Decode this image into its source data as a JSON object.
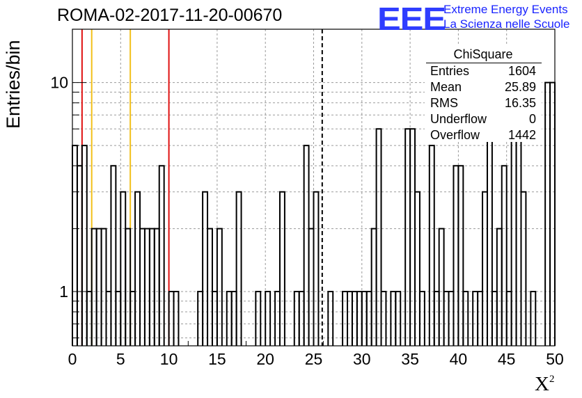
{
  "title": "ROMA-02-2017-11-20-00670",
  "logo": {
    "mark": "EEE",
    "line1": "Extreme Energy Events",
    "line2": "La Scienza nelle Scuole",
    "color": "#2f3dff"
  },
  "stats_box": {
    "title": "ChiSquare",
    "rows": [
      {
        "key": "Entries",
        "value": "1604"
      },
      {
        "key": "Mean",
        "value": "25.89"
      },
      {
        "key": "RMS",
        "value": "16.35"
      },
      {
        "key": "Underflow",
        "value": "0"
      },
      {
        "key": "Overflow",
        "value": "1442"
      }
    ]
  },
  "chart_data": {
    "type": "histogram",
    "xlabel_base": "X",
    "xlabel_sup": "2",
    "ylabel": "Entries/bin",
    "xlim": [
      0,
      50
    ],
    "ylim": [
      0.55,
      18
    ],
    "yscale": "log",
    "bin_width": 0.5,
    "x_ticks": [
      "0",
      "5",
      "10",
      "15",
      "20",
      "25",
      "30",
      "35",
      "40",
      "45",
      "50"
    ],
    "y_ticks": [
      "1",
      "10"
    ],
    "grid": true,
    "bins": [
      {
        "x0": 0.0,
        "y": 5
      },
      {
        "x0": 0.5,
        "y": 4
      },
      {
        "x0": 1.0,
        "y": 5
      },
      {
        "x0": 1.5,
        "y": 1
      },
      {
        "x0": 2.0,
        "y": 2
      },
      {
        "x0": 2.5,
        "y": 2
      },
      {
        "x0": 3.0,
        "y": 2
      },
      {
        "x0": 3.5,
        "y": 1
      },
      {
        "x0": 4.0,
        "y": 4
      },
      {
        "x0": 4.5,
        "y": 1
      },
      {
        "x0": 5.0,
        "y": 3
      },
      {
        "x0": 5.5,
        "y": 2
      },
      {
        "x0": 6.0,
        "y": 1
      },
      {
        "x0": 6.5,
        "y": 3
      },
      {
        "x0": 7.0,
        "y": 2
      },
      {
        "x0": 7.5,
        "y": 2
      },
      {
        "x0": 8.0,
        "y": 2
      },
      {
        "x0": 8.5,
        "y": 2
      },
      {
        "x0": 9.0,
        "y": 4
      },
      {
        "x0": 9.5,
        "y": 0
      },
      {
        "x0": 10.0,
        "y": 1
      },
      {
        "x0": 10.5,
        "y": 1
      },
      {
        "x0": 11.0,
        "y": 0
      },
      {
        "x0": 13.0,
        "y": 1
      },
      {
        "x0": 13.5,
        "y": 3
      },
      {
        "x0": 14.0,
        "y": 2
      },
      {
        "x0": 14.5,
        "y": 1
      },
      {
        "x0": 15.0,
        "y": 2
      },
      {
        "x0": 15.5,
        "y": 0
      },
      {
        "x0": 16.0,
        "y": 1
      },
      {
        "x0": 16.5,
        "y": 1
      },
      {
        "x0": 17.0,
        "y": 3
      },
      {
        "x0": 17.5,
        "y": 0
      },
      {
        "x0": 19.0,
        "y": 1
      },
      {
        "x0": 19.5,
        "y": 0
      },
      {
        "x0": 20.0,
        "y": 1
      },
      {
        "x0": 20.5,
        "y": 0
      },
      {
        "x0": 21.0,
        "y": 1
      },
      {
        "x0": 21.5,
        "y": 3
      },
      {
        "x0": 22.0,
        "y": 0
      },
      {
        "x0": 23.0,
        "y": 1
      },
      {
        "x0": 23.5,
        "y": 1
      },
      {
        "x0": 24.0,
        "y": 5
      },
      {
        "x0": 24.5,
        "y": 2
      },
      {
        "x0": 25.0,
        "y": 3
      },
      {
        "x0": 25.5,
        "y": 0
      },
      {
        "x0": 26.5,
        "y": 1
      },
      {
        "x0": 27.0,
        "y": 0
      },
      {
        "x0": 28.0,
        "y": 1
      },
      {
        "x0": 28.5,
        "y": 1
      },
      {
        "x0": 29.0,
        "y": 1
      },
      {
        "x0": 29.5,
        "y": 1
      },
      {
        "x0": 30.0,
        "y": 1
      },
      {
        "x0": 30.5,
        "y": 1
      },
      {
        "x0": 31.0,
        "y": 2
      },
      {
        "x0": 31.5,
        "y": 6
      },
      {
        "x0": 32.0,
        "y": 1
      },
      {
        "x0": 32.5,
        "y": 0
      },
      {
        "x0": 33.0,
        "y": 1
      },
      {
        "x0": 33.5,
        "y": 1
      },
      {
        "x0": 34.0,
        "y": 0
      },
      {
        "x0": 34.5,
        "y": 6
      },
      {
        "x0": 35.0,
        "y": 6
      },
      {
        "x0": 35.5,
        "y": 3
      },
      {
        "x0": 36.0,
        "y": 1
      },
      {
        "x0": 36.5,
        "y": 0
      },
      {
        "x0": 37.0,
        "y": 5
      },
      {
        "x0": 37.5,
        "y": 1
      },
      {
        "x0": 38.0,
        "y": 2
      },
      {
        "x0": 38.5,
        "y": 1
      },
      {
        "x0": 39.0,
        "y": 1
      },
      {
        "x0": 39.5,
        "y": 4
      },
      {
        "x0": 40.0,
        "y": 4
      },
      {
        "x0": 40.5,
        "y": 1
      },
      {
        "x0": 41.0,
        "y": 0
      },
      {
        "x0": 41.5,
        "y": 1
      },
      {
        "x0": 42.0,
        "y": 1
      },
      {
        "x0": 42.5,
        "y": 3
      },
      {
        "x0": 43.0,
        "y": 6
      },
      {
        "x0": 43.5,
        "y": 1
      },
      {
        "x0": 44.0,
        "y": 2
      },
      {
        "x0": 44.5,
        "y": 4
      },
      {
        "x0": 45.0,
        "y": 1
      },
      {
        "x0": 45.5,
        "y": 7
      },
      {
        "x0": 46.0,
        "y": 7
      },
      {
        "x0": 46.5,
        "y": 3
      },
      {
        "x0": 47.0,
        "y": 0
      },
      {
        "x0": 47.5,
        "y": 1
      },
      {
        "x0": 48.0,
        "y": 0
      },
      {
        "x0": 49.0,
        "y": 10
      },
      {
        "x0": 49.5,
        "y": 10
      }
    ],
    "reference_lines": [
      {
        "x": 1.0,
        "color": "#e01010",
        "style": "solid"
      },
      {
        "x": 2.0,
        "color": "#f2c01a",
        "style": "solid"
      },
      {
        "x": 6.0,
        "color": "#f2c01a",
        "style": "solid"
      },
      {
        "x": 10.0,
        "color": "#e01010",
        "style": "solid"
      },
      {
        "x": 25.89,
        "color": "#000000",
        "style": "dashed"
      }
    ]
  }
}
